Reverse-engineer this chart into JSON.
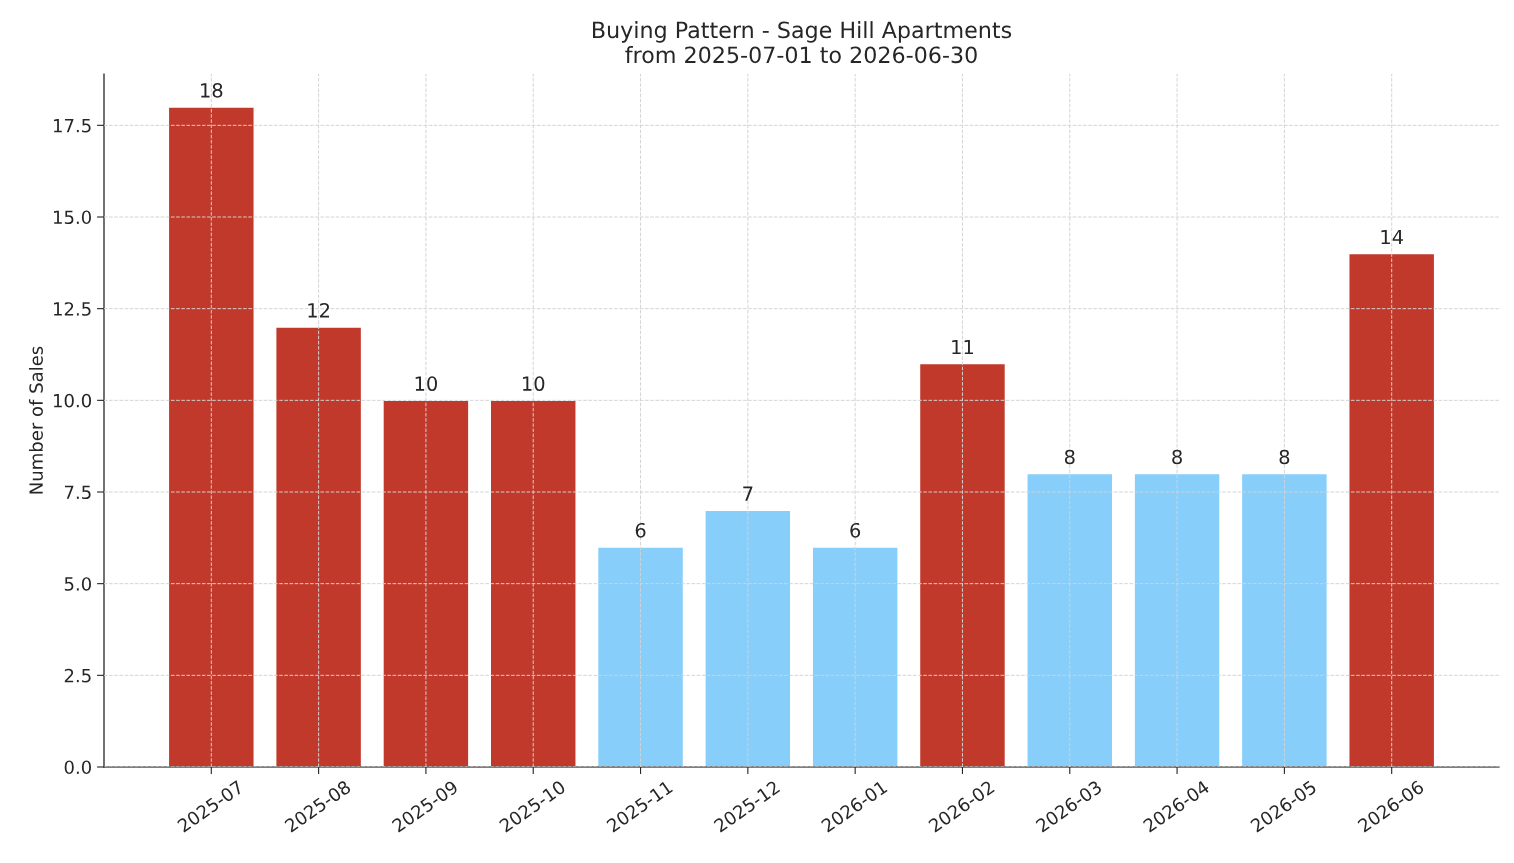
{
  "chart_data": {
    "type": "bar",
    "title": "Buying Pattern - Sage Hill Apartments\nfrom 2025-07-01 to 2026-06-30",
    "ylabel": "Number of Sales",
    "categories": [
      "2025-07",
      "2025-08",
      "2025-09",
      "2025-10",
      "2025-11",
      "2025-12",
      "2026-01",
      "2026-02",
      "2026-03",
      "2026-04",
      "2026-05",
      "2026-06"
    ],
    "values": [
      18,
      12,
      10,
      10,
      6,
      7,
      6,
      11,
      8,
      8,
      8,
      14
    ],
    "colors": [
      "#c0392b",
      "#c0392b",
      "#c0392b",
      "#c0392b",
      "#87cefa",
      "#87cefa",
      "#87cefa",
      "#c0392b",
      "#87cefa",
      "#87cefa",
      "#87cefa",
      "#c0392b"
    ],
    "ylim": [
      0,
      18.9
    ],
    "yticks": [
      {
        "value": 0,
        "label": "0.0"
      },
      {
        "value": 2.5,
        "label": "2.5"
      },
      {
        "value": 5,
        "label": "5.0"
      },
      {
        "value": 7.5,
        "label": "7.5"
      },
      {
        "value": 10,
        "label": "10.0"
      },
      {
        "value": 12.5,
        "label": "12.5"
      },
      {
        "value": 15,
        "label": "15.0"
      },
      {
        "value": 17.5,
        "label": "17.5"
      }
    ],
    "grid": true,
    "data_labels": true
  }
}
